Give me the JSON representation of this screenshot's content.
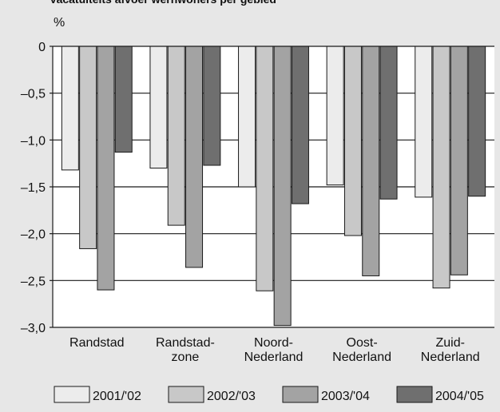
{
  "chart_data": {
    "type": "bar",
    "title": "Vacatuiteits afvoer wernwoners per gebied",
    "ylabel": "%",
    "ylim": [
      -3.0,
      0
    ],
    "yticks": [
      "0",
      "–0,5",
      "–1,0",
      "–1,5",
      "–2,0",
      "–2,5",
      "–3,0"
    ],
    "ytick_values": [
      0,
      -0.5,
      -1.0,
      -1.5,
      -2.0,
      -2.5,
      -3.0
    ],
    "categories": [
      [
        "Randstad"
      ],
      [
        "Randstad-",
        "zone"
      ],
      [
        "Noord-",
        "Nederland"
      ],
      [
        "Oost-",
        "Nederland"
      ],
      [
        "Zuid-",
        "Nederland"
      ]
    ],
    "series": [
      {
        "name": "2001/'02",
        "color": "#ececec",
        "values": [
          -1.32,
          -1.3,
          -1.5,
          -1.48,
          -1.61
        ]
      },
      {
        "name": "2002/'03",
        "color": "#c8c8c8",
        "values": [
          -2.16,
          -1.91,
          -2.61,
          -2.02,
          -2.58
        ]
      },
      {
        "name": "2003/'04",
        "color": "#a3a3a3",
        "values": [
          -2.6,
          -2.36,
          -2.98,
          -2.45,
          -2.44
        ]
      },
      {
        "name": "2004/'05",
        "color": "#6f6f6f",
        "values": [
          -1.13,
          -1.27,
          -1.68,
          -1.63,
          -1.6
        ]
      }
    ],
    "grid": true,
    "legend": "bottom"
  }
}
